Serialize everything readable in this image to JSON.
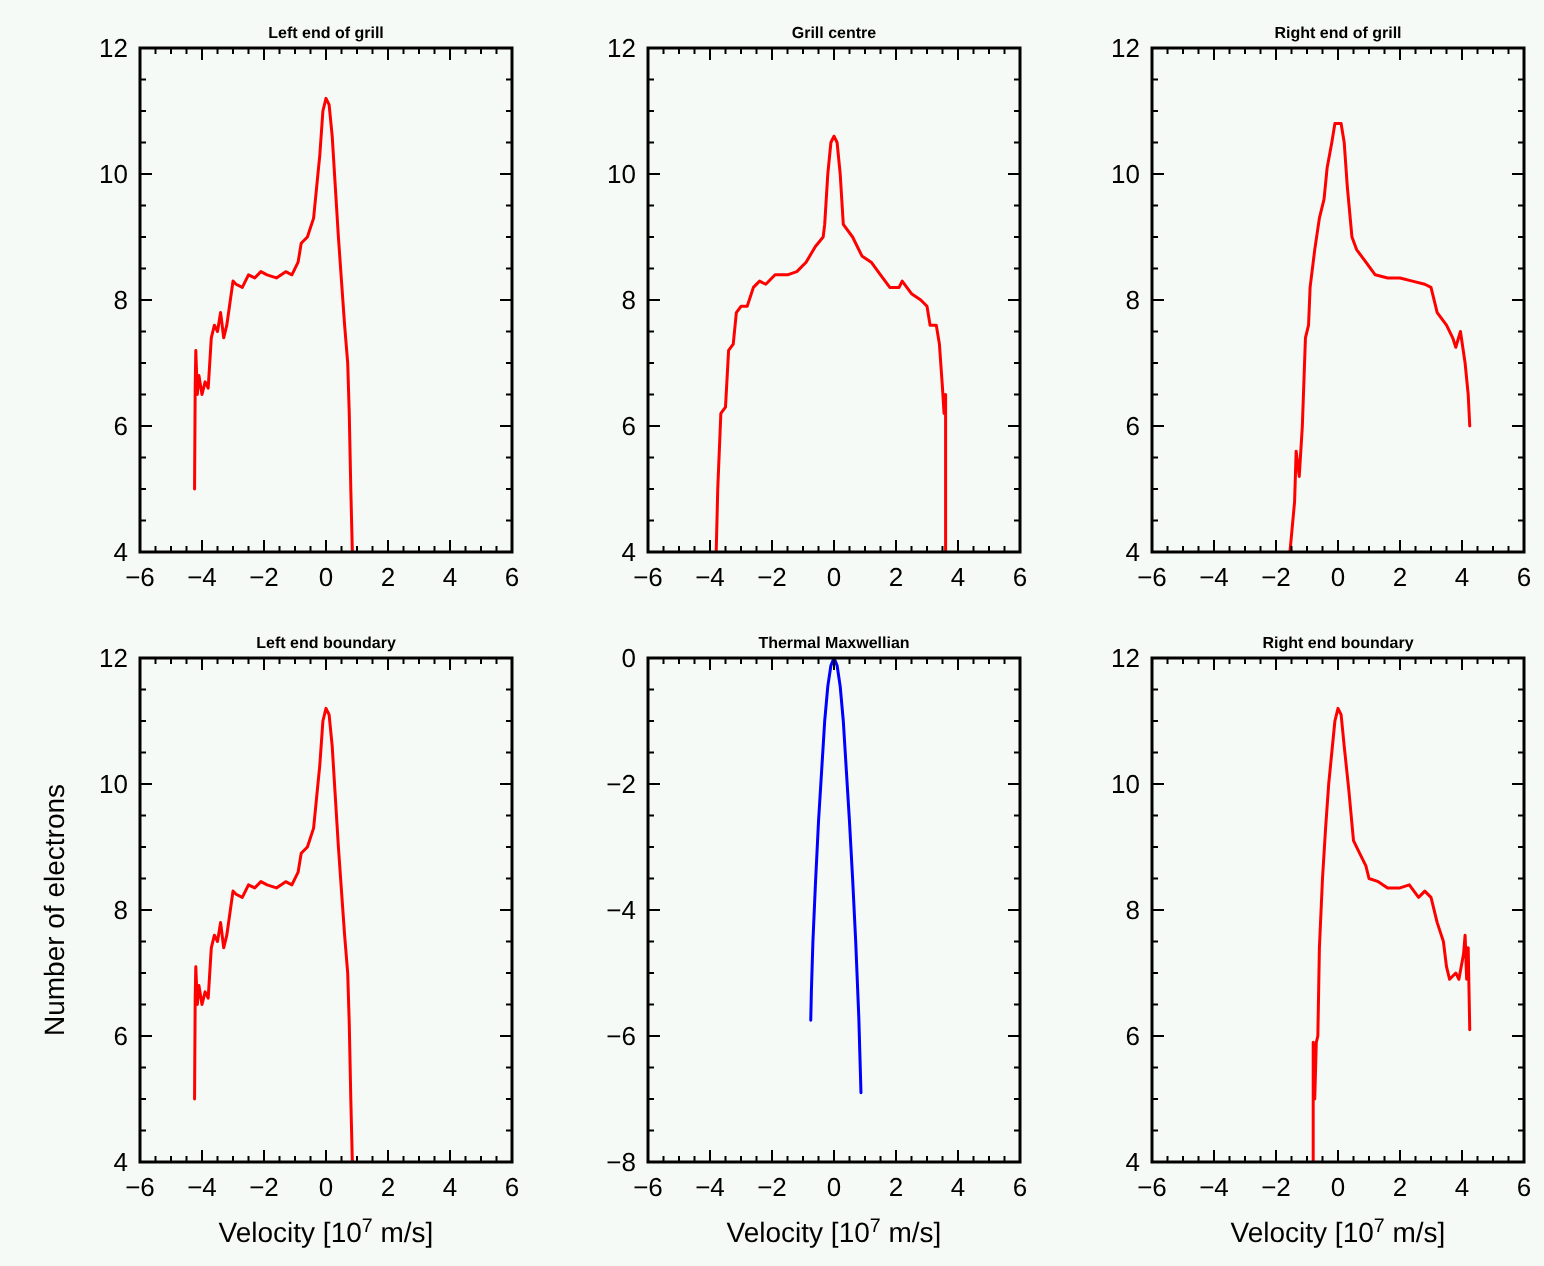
{
  "chart_data": [
    {
      "type": "line",
      "title": "Left end of grill",
      "xlim": [
        -6,
        6
      ],
      "ylim": [
        4,
        12
      ],
      "xticks": [
        -6,
        {
          "value": -5.5,
          "label": null
        },
        {
          "value": -5,
          "label": null
        },
        {
          "value": -4.5,
          "label": null
        },
        -4,
        {
          "value": -3.5,
          "label": null
        },
        {
          "value": -3,
          "label": null
        },
        {
          "value": -2.5,
          "label": null
        },
        -2,
        {
          "value": -1.5,
          "label": null
        },
        {
          "value": -1,
          "label": null
        },
        {
          "value": -0.5,
          "label": null
        },
        0,
        {
          "value": 0.5,
          "label": null
        },
        {
          "value": 1,
          "label": null
        },
        {
          "value": 1.5,
          "label": null
        },
        2,
        {
          "value": 2.5,
          "label": null
        },
        {
          "value": 3,
          "label": null
        },
        {
          "value": 3.5,
          "label": null
        },
        4,
        {
          "value": 4.5,
          "label": null
        },
        {
          "value": 5,
          "label": null
        },
        {
          "value": 5.5,
          "label": null
        },
        6
      ],
      "yticks": [
        4,
        {
          "value": 4.5,
          "label": null
        },
        {
          "value": 5,
          "label": null
        },
        {
          "value": 5.5,
          "label": null
        },
        6,
        {
          "value": 6.5,
          "label": null
        },
        {
          "value": 7,
          "label": null
        },
        {
          "value": 7.5,
          "label": null
        },
        8,
        {
          "value": 8.5,
          "label": null
        },
        {
          "value": 9,
          "label": null
        },
        {
          "value": 9.5,
          "label": null
        },
        10,
        {
          "value": 10.5,
          "label": null
        },
        {
          "value": 11,
          "label": null
        },
        {
          "value": 11.5,
          "label": null
        },
        12
      ],
      "series": [
        {
          "color": "#ff0000",
          "x": [
            -4.24,
            -4.22,
            -4.2,
            -4.15,
            -4.1,
            -4.0,
            -3.9,
            -3.8,
            -3.7,
            -3.6,
            -3.5,
            -3.4,
            -3.3,
            -3.2,
            -3.0,
            -2.9,
            -2.7,
            -2.5,
            -2.3,
            -2.1,
            -1.9,
            -1.6,
            -1.3,
            -1.1,
            -0.9,
            -0.8,
            -0.6,
            -0.4,
            -0.3,
            -0.2,
            -0.1,
            0,
            0.1,
            0.2,
            0.3,
            0.4,
            0.5,
            0.6,
            0.7,
            0.75,
            0.8,
            0.85
          ],
          "values": [
            5.0,
            6.6,
            7.2,
            6.5,
            6.8,
            6.5,
            6.7,
            6.6,
            7.4,
            7.6,
            7.5,
            7.8,
            7.4,
            7.6,
            8.3,
            8.25,
            8.2,
            8.4,
            8.35,
            8.45,
            8.4,
            8.35,
            8.45,
            8.4,
            8.6,
            8.9,
            9.0,
            9.3,
            9.8,
            10.3,
            11.0,
            11.2,
            11.1,
            10.6,
            9.8,
            9.0,
            8.3,
            7.6,
            7.0,
            6.2,
            5.0,
            4.0
          ]
        }
      ]
    },
    {
      "type": "line",
      "title": "Grill centre",
      "xlim": [
        -6,
        6
      ],
      "ylim": [
        4,
        12
      ],
      "xticks": [
        -6,
        {
          "value": -5.5,
          "label": null
        },
        {
          "value": -5,
          "label": null
        },
        {
          "value": -4.5,
          "label": null
        },
        -4,
        {
          "value": -3.5,
          "label": null
        },
        {
          "value": -3,
          "label": null
        },
        {
          "value": -2.5,
          "label": null
        },
        -2,
        {
          "value": -1.5,
          "label": null
        },
        {
          "value": -1,
          "label": null
        },
        {
          "value": -0.5,
          "label": null
        },
        0,
        {
          "value": 0.5,
          "label": null
        },
        {
          "value": 1,
          "label": null
        },
        {
          "value": 1.5,
          "label": null
        },
        2,
        {
          "value": 2.5,
          "label": null
        },
        {
          "value": 3,
          "label": null
        },
        {
          "value": 3.5,
          "label": null
        },
        4,
        {
          "value": 4.5,
          "label": null
        },
        {
          "value": 5,
          "label": null
        },
        {
          "value": 5.5,
          "label": null
        },
        6
      ],
      "yticks": [
        4,
        {
          "value": 4.5,
          "label": null
        },
        {
          "value": 5,
          "label": null
        },
        {
          "value": 5.5,
          "label": null
        },
        6,
        {
          "value": 6.5,
          "label": null
        },
        {
          "value": 7,
          "label": null
        },
        {
          "value": 7.5,
          "label": null
        },
        8,
        {
          "value": 8.5,
          "label": null
        },
        {
          "value": 9,
          "label": null
        },
        {
          "value": 9.5,
          "label": null
        },
        10,
        {
          "value": 10.5,
          "label": null
        },
        {
          "value": 11,
          "label": null
        },
        {
          "value": 11.5,
          "label": null
        },
        12
      ],
      "series": [
        {
          "color": "#ff0000",
          "x": [
            -3.8,
            -3.75,
            -3.65,
            -3.5,
            -3.4,
            -3.25,
            -3.15,
            -3.0,
            -2.8,
            -2.6,
            -2.4,
            -2.2,
            -1.9,
            -1.5,
            -1.2,
            -0.9,
            -0.6,
            -0.35,
            -0.3,
            -0.2,
            -0.1,
            0,
            0.1,
            0.2,
            0.3,
            0.6,
            0.9,
            1.2,
            1.5,
            1.8,
            2.1,
            2.2,
            2.5,
            2.8,
            3.0,
            3.1,
            3.3,
            3.4,
            3.5,
            3.55,
            3.6,
            3.6
          ],
          "values": [
            4.0,
            5.0,
            6.2,
            6.3,
            7.2,
            7.3,
            7.8,
            7.9,
            7.9,
            8.2,
            8.3,
            8.25,
            8.4,
            8.4,
            8.45,
            8.6,
            8.85,
            9.0,
            9.2,
            10.0,
            10.5,
            10.6,
            10.5,
            10.0,
            9.2,
            9.0,
            8.7,
            8.6,
            8.4,
            8.2,
            8.2,
            8.3,
            8.1,
            8.0,
            7.9,
            7.6,
            7.6,
            7.3,
            6.6,
            6.2,
            6.5,
            4.0
          ]
        }
      ]
    },
    {
      "type": "line",
      "title": "Right end of grill",
      "xlim": [
        -6,
        6
      ],
      "ylim": [
        4,
        12
      ],
      "xticks": [
        -6,
        {
          "value": -5.5,
          "label": null
        },
        {
          "value": -5,
          "label": null
        },
        {
          "value": -4.5,
          "label": null
        },
        -4,
        {
          "value": -3.5,
          "label": null
        },
        {
          "value": -3,
          "label": null
        },
        {
          "value": -2.5,
          "label": null
        },
        -2,
        {
          "value": -1.5,
          "label": null
        },
        {
          "value": -1,
          "label": null
        },
        {
          "value": -0.5,
          "label": null
        },
        0,
        {
          "value": 0.5,
          "label": null
        },
        {
          "value": 1,
          "label": null
        },
        {
          "value": 1.5,
          "label": null
        },
        2,
        {
          "value": 2.5,
          "label": null
        },
        {
          "value": 3,
          "label": null
        },
        {
          "value": 3.5,
          "label": null
        },
        4,
        {
          "value": 4.5,
          "label": null
        },
        {
          "value": 5,
          "label": null
        },
        {
          "value": 5.5,
          "label": null
        },
        6
      ],
      "yticks": [
        4,
        {
          "value": 4.5,
          "label": null
        },
        {
          "value": 5,
          "label": null
        },
        {
          "value": 5.5,
          "label": null
        },
        6,
        {
          "value": 6.5,
          "label": null
        },
        {
          "value": 7,
          "label": null
        },
        {
          "value": 7.5,
          "label": null
        },
        8,
        {
          "value": 8.5,
          "label": null
        },
        {
          "value": 9,
          "label": null
        },
        {
          "value": 9.5,
          "label": null
        },
        10,
        {
          "value": 10.5,
          "label": null
        },
        {
          "value": 11,
          "label": null
        },
        {
          "value": 11.5,
          "label": null
        },
        12
      ],
      "series": [
        {
          "color": "#ff0000",
          "x": [
            -1.55,
            -1.4,
            -1.35,
            -1.25,
            -1.15,
            -1.05,
            -0.95,
            -0.9,
            -0.75,
            -0.6,
            -0.45,
            -0.35,
            -0.2,
            -0.1,
            0.1,
            0.2,
            0.3,
            0.45,
            0.6,
            0.9,
            1.2,
            1.6,
            2.0,
            2.4,
            2.8,
            3.0,
            3.2,
            3.5,
            3.7,
            3.8,
            3.95,
            4.1,
            4.2,
            4.25
          ],
          "values": [
            4.0,
            4.8,
            5.6,
            5.2,
            6.0,
            7.4,
            7.6,
            8.2,
            8.8,
            9.3,
            9.6,
            10.1,
            10.5,
            10.8,
            10.8,
            10.5,
            9.8,
            9.0,
            8.8,
            8.6,
            8.4,
            8.35,
            8.35,
            8.3,
            8.25,
            8.2,
            7.8,
            7.6,
            7.4,
            7.25,
            7.5,
            7.0,
            6.5,
            6.0
          ]
        }
      ]
    },
    {
      "type": "line",
      "title": "Left end boundary",
      "xlabel": "Velocity [10$^{7}$ m/s]",
      "ylabel": "Number of electrons",
      "xlim": [
        -6,
        6
      ],
      "ylim": [
        4,
        12
      ],
      "xticks": [
        -6,
        {
          "value": -5.5,
          "label": null
        },
        {
          "value": -5,
          "label": null
        },
        {
          "value": -4.5,
          "label": null
        },
        -4,
        {
          "value": -3.5,
          "label": null
        },
        {
          "value": -3,
          "label": null
        },
        {
          "value": -2.5,
          "label": null
        },
        -2,
        {
          "value": -1.5,
          "label": null
        },
        {
          "value": -1,
          "label": null
        },
        {
          "value": -0.5,
          "label": null
        },
        0,
        {
          "value": 0.5,
          "label": null
        },
        {
          "value": 1,
          "label": null
        },
        {
          "value": 1.5,
          "label": null
        },
        2,
        {
          "value": 2.5,
          "label": null
        },
        {
          "value": 3,
          "label": null
        },
        {
          "value": 3.5,
          "label": null
        },
        4,
        {
          "value": 4.5,
          "label": null
        },
        {
          "value": 5,
          "label": null
        },
        {
          "value": 5.5,
          "label": null
        },
        6
      ],
      "yticks": [
        4,
        {
          "value": 4.5,
          "label": null
        },
        {
          "value": 5,
          "label": null
        },
        {
          "value": 5.5,
          "label": null
        },
        6,
        {
          "value": 6.5,
          "label": null
        },
        {
          "value": 7,
          "label": null
        },
        {
          "value": 7.5,
          "label": null
        },
        8,
        {
          "value": 8.5,
          "label": null
        },
        {
          "value": 9,
          "label": null
        },
        {
          "value": 9.5,
          "label": null
        },
        10,
        {
          "value": 10.5,
          "label": null
        },
        {
          "value": 11,
          "label": null
        },
        {
          "value": 11.5,
          "label": null
        },
        12
      ],
      "series": [
        {
          "color": "#ff0000",
          "x": [
            -4.24,
            -4.22,
            -4.2,
            -4.15,
            -4.1,
            -4.0,
            -3.9,
            -3.8,
            -3.7,
            -3.6,
            -3.5,
            -3.4,
            -3.3,
            -3.2,
            -3.0,
            -2.9,
            -2.7,
            -2.5,
            -2.3,
            -2.1,
            -1.9,
            -1.6,
            -1.3,
            -1.1,
            -0.9,
            -0.8,
            -0.6,
            -0.4,
            -0.3,
            -0.2,
            -0.1,
            0,
            0.1,
            0.2,
            0.3,
            0.4,
            0.5,
            0.6,
            0.7,
            0.75,
            0.8,
            0.85
          ],
          "values": [
            5.0,
            6.6,
            7.1,
            6.5,
            6.8,
            6.5,
            6.7,
            6.6,
            7.4,
            7.6,
            7.5,
            7.8,
            7.4,
            7.6,
            8.3,
            8.25,
            8.2,
            8.4,
            8.35,
            8.45,
            8.4,
            8.35,
            8.45,
            8.4,
            8.6,
            8.9,
            9.0,
            9.3,
            9.8,
            10.3,
            11.0,
            11.2,
            11.1,
            10.6,
            9.8,
            9.0,
            8.3,
            7.6,
            7.0,
            6.2,
            5.0,
            4.0
          ]
        }
      ]
    },
    {
      "type": "line",
      "title": "Thermal Maxwellian",
      "xlabel": "Velocity [10$^{7}$ m/s]",
      "xlim": [
        -6,
        6
      ],
      "ylim": [
        -8,
        0
      ],
      "xticks": [
        -6,
        {
          "value": -5.5,
          "label": null
        },
        {
          "value": -5,
          "label": null
        },
        {
          "value": -4.5,
          "label": null
        },
        -4,
        {
          "value": -3.5,
          "label": null
        },
        {
          "value": -3,
          "label": null
        },
        {
          "value": -2.5,
          "label": null
        },
        -2,
        {
          "value": -1.5,
          "label": null
        },
        {
          "value": -1,
          "label": null
        },
        {
          "value": -0.5,
          "label": null
        },
        0,
        {
          "value": 0.5,
          "label": null
        },
        {
          "value": 1,
          "label": null
        },
        {
          "value": 1.5,
          "label": null
        },
        2,
        {
          "value": 2.5,
          "label": null
        },
        {
          "value": 3,
          "label": null
        },
        {
          "value": 3.5,
          "label": null
        },
        4,
        {
          "value": 4.5,
          "label": null
        },
        {
          "value": 5,
          "label": null
        },
        {
          "value": 5.5,
          "label": null
        },
        6
      ],
      "yticks": [
        -8,
        {
          "value": -7.5,
          "label": null
        },
        {
          "value": -7,
          "label": null
        },
        {
          "value": -6.5,
          "label": null
        },
        -6,
        {
          "value": -5.5,
          "label": null
        },
        {
          "value": -5,
          "label": null
        },
        {
          "value": -4.5,
          "label": null
        },
        -4,
        {
          "value": -3.5,
          "label": null
        },
        {
          "value": -3,
          "label": null
        },
        {
          "value": -2.5,
          "label": null
        },
        -2,
        {
          "value": -1.5,
          "label": null
        },
        {
          "value": -1,
          "label": null
        },
        {
          "value": -0.5,
          "label": null
        },
        0
      ],
      "series": [
        {
          "color": "#0000ff",
          "x": [
            -0.75,
            -0.73,
            -0.68,
            -0.6,
            -0.5,
            -0.4,
            -0.3,
            -0.2,
            -0.1,
            0,
            0.1,
            0.2,
            0.3,
            0.4,
            0.5,
            0.6,
            0.7,
            0.8,
            0.87
          ],
          "values": [
            -5.75,
            -5.3,
            -4.5,
            -3.6,
            -2.6,
            -1.8,
            -1.0,
            -0.45,
            -0.12,
            0,
            -0.12,
            -0.45,
            -1.0,
            -1.8,
            -2.6,
            -3.5,
            -4.5,
            -5.7,
            -6.9
          ]
        }
      ]
    },
    {
      "type": "line",
      "title": "Right end boundary",
      "xlabel": "Velocity [10$^{7}$ m/s]",
      "xlim": [
        -6,
        6
      ],
      "ylim": [
        4,
        12
      ],
      "xticks": [
        -6,
        {
          "value": -5.5,
          "label": null
        },
        {
          "value": -5,
          "label": null
        },
        {
          "value": -4.5,
          "label": null
        },
        -4,
        {
          "value": -3.5,
          "label": null
        },
        {
          "value": -3,
          "label": null
        },
        {
          "value": -2.5,
          "label": null
        },
        -2,
        {
          "value": -1.5,
          "label": null
        },
        {
          "value": -1,
          "label": null
        },
        {
          "value": -0.5,
          "label": null
        },
        0,
        {
          "value": 0.5,
          "label": null
        },
        {
          "value": 1,
          "label": null
        },
        {
          "value": 1.5,
          "label": null
        },
        2,
        {
          "value": 2.5,
          "label": null
        },
        {
          "value": 3,
          "label": null
        },
        {
          "value": 3.5,
          "label": null
        },
        4,
        {
          "value": 4.5,
          "label": null
        },
        {
          "value": 5,
          "label": null
        },
        {
          "value": 5.5,
          "label": null
        },
        6
      ],
      "yticks": [
        4,
        {
          "value": 4.5,
          "label": null
        },
        {
          "value": 5,
          "label": null
        },
        {
          "value": 5.5,
          "label": null
        },
        6,
        {
          "value": 6.5,
          "label": null
        },
        {
          "value": 7,
          "label": null
        },
        {
          "value": 7.5,
          "label": null
        },
        8,
        {
          "value": 8.5,
          "label": null
        },
        {
          "value": 9,
          "label": null
        },
        {
          "value": 9.5,
          "label": null
        },
        10,
        {
          "value": 10.5,
          "label": null
        },
        {
          "value": 11,
          "label": null
        },
        {
          "value": 11.5,
          "label": null
        },
        12
      ],
      "series": [
        {
          "color": "#ff0000",
          "x": [
            -0.8,
            -0.8,
            -0.75,
            -0.7,
            -0.65,
            -0.6,
            -0.5,
            -0.4,
            -0.3,
            -0.2,
            -0.1,
            0,
            0.1,
            0.2,
            0.35,
            0.5,
            0.7,
            0.9,
            1.0,
            1.3,
            1.6,
            2.0,
            2.3,
            2.6,
            2.8,
            3.0,
            3.2,
            3.4,
            3.5,
            3.6,
            3.8,
            3.9,
            4.05,
            4.1,
            4.15,
            4.2,
            4.25
          ],
          "values": [
            4.0,
            5.9,
            5.0,
            5.9,
            6.0,
            7.4,
            8.5,
            9.3,
            10.0,
            10.5,
            11.0,
            11.2,
            11.1,
            10.6,
            9.9,
            9.1,
            8.9,
            8.7,
            8.5,
            8.45,
            8.35,
            8.35,
            8.4,
            8.2,
            8.3,
            8.2,
            7.8,
            7.5,
            7.1,
            6.9,
            7.0,
            6.9,
            7.3,
            7.6,
            6.9,
            7.4,
            6.1
          ]
        }
      ]
    }
  ]
}
